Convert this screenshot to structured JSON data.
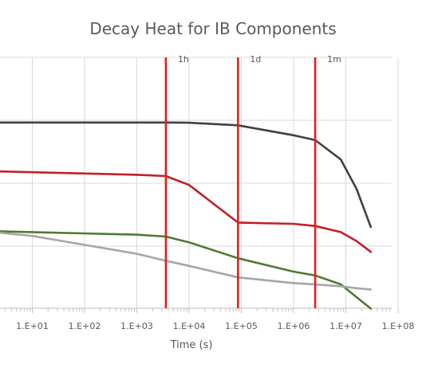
{
  "chart_data": {
    "type": "line",
    "title": "Decay Heat for IB Components",
    "xlabel": "Time (s)",
    "ylabel": "",
    "xscale": "log",
    "xlim": [
      1,
      100000000
    ],
    "x_tick_labels": [
      "1.E+01",
      "1.E+02",
      "1.E+03",
      "1.E+04",
      "1.E+05",
      "1.E+06",
      "1.E+07",
      "1.E+08"
    ],
    "x_tick_values": [
      10,
      100,
      1000,
      10000,
      100000,
      1000000,
      10000000,
      100000000
    ],
    "grid": true,
    "legend": "none",
    "markers": [
      {
        "label": "1h",
        "x": 3600,
        "color": "#e02020"
      },
      {
        "label": "1d",
        "x": 86400,
        "color": "#e02020"
      },
      {
        "label": "1m",
        "x": 2592000,
        "color": "#e02020"
      }
    ],
    "series": [
      {
        "color": "#404040",
        "points": [
          [
            1,
            97.0
          ],
          [
            10,
            97.0
          ],
          [
            100,
            97.0
          ],
          [
            1000,
            97.0
          ],
          [
            3600,
            97.0
          ],
          [
            10000,
            96.8
          ],
          [
            86400,
            94.8
          ],
          [
            1000000,
            87.0
          ],
          [
            2592000,
            83.2
          ],
          [
            8000000,
            68.0
          ],
          [
            16000000,
            45.0
          ],
          [
            30000000,
            15.0
          ]
        ]
      },
      {
        "color": "#c0202a",
        "points": [
          [
            1,
            59.0
          ],
          [
            10,
            58.0
          ],
          [
            100,
            57.0
          ],
          [
            1000,
            56.0
          ],
          [
            3600,
            55.0
          ],
          [
            10000,
            48.0
          ],
          [
            86400,
            18.5
          ],
          [
            1000000,
            17.5
          ],
          [
            2592000,
            15.8
          ],
          [
            8000000,
            11.0
          ],
          [
            16000000,
            4.0
          ],
          [
            30000000,
            -4.5
          ]
        ]
      },
      {
        "color": "#4e7a34",
        "points": [
          [
            1,
            12.0
          ],
          [
            10,
            11.0
          ],
          [
            100,
            10.0
          ],
          [
            1000,
            9.0
          ],
          [
            3600,
            7.5
          ],
          [
            10000,
            3.0
          ],
          [
            86400,
            -9.5
          ],
          [
            1000000,
            -20.0
          ],
          [
            2592000,
            -23.0
          ],
          [
            8000000,
            -30.0
          ],
          [
            16000000,
            -40.0
          ],
          [
            30000000,
            -49.0
          ]
        ]
      },
      {
        "color": "#a6a6a6",
        "points": [
          [
            1,
            12.0
          ],
          [
            10,
            8.0
          ],
          [
            100,
            1.0
          ],
          [
            1000,
            -6.0
          ],
          [
            3600,
            -11.5
          ],
          [
            10000,
            -15.5
          ],
          [
            86400,
            -24.5
          ],
          [
            1000000,
            -29.0
          ],
          [
            2592000,
            -30.0
          ],
          [
            8000000,
            -31.5
          ],
          [
            16000000,
            -33.0
          ],
          [
            30000000,
            -34.0
          ]
        ]
      }
    ]
  }
}
